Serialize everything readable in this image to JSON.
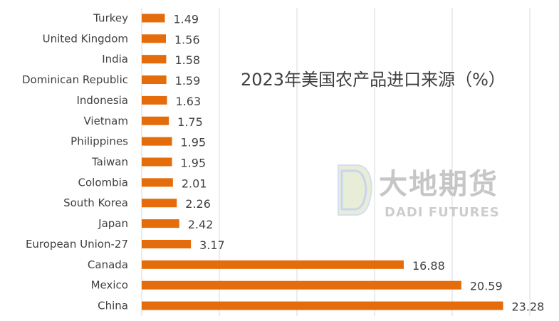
{
  "chart_data": {
    "type": "bar",
    "orientation": "horizontal",
    "title": "2023年美国农产品进口来源（%）",
    "categories": [
      "Turkey",
      "United Kingdom",
      "India",
      "Dominican Republic",
      "Indonesia",
      "Vietnam",
      "Philippines",
      "Taiwan",
      "Colombia",
      "South Korea",
      "Japan",
      "European Union-27",
      "Canada",
      "Mexico",
      "China"
    ],
    "values": [
      1.49,
      1.56,
      1.58,
      1.59,
      1.63,
      1.75,
      1.95,
      1.95,
      2.01,
      2.26,
      2.42,
      3.17,
      16.88,
      20.59,
      23.28
    ],
    "data_labels": [
      "1.49",
      "1.56",
      "1.58",
      "1.59",
      "1.63",
      "1.75",
      "1.95",
      "1.95",
      "2.01",
      "2.26",
      "2.42",
      "3.17",
      "16.88",
      "20.59",
      "23.28"
    ],
    "xlim": [
      0,
      25
    ],
    "x_gridlines": [
      0,
      5,
      10,
      15,
      20,
      25
    ],
    "grid": true,
    "bar_color": "#E46C0A",
    "grid_color": "#D9D9D9",
    "text_color": "#404040"
  },
  "watermark": {
    "text_cn": "大地期货",
    "text_en": "DADI FUTURES",
    "logo_icon": "dadi-logo-icon"
  }
}
